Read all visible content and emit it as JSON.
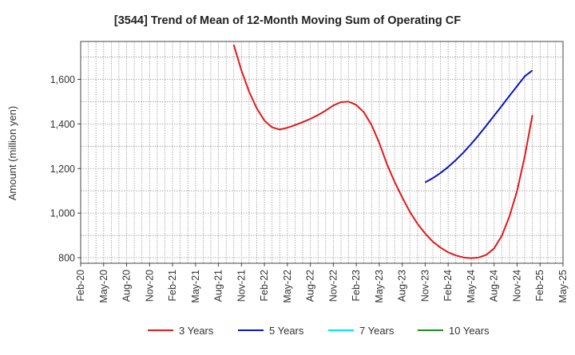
{
  "chart_data": {
    "type": "line",
    "title": "[3544]  Trend of Mean of 12-Month Moving Sum of Operating CF",
    "xlabel": "",
    "ylabel": "Amount (million yen)",
    "ylim": [
      775,
      1770
    ],
    "yticks": [
      800,
      1000,
      1200,
      1400,
      1600
    ],
    "ytick_labels": [
      "800",
      "1,000",
      "1,200",
      "1,400",
      "1,600"
    ],
    "x_start": "2020-02",
    "x_end": "2025-05",
    "xtick_labels": [
      "Feb-20",
      "May-20",
      "Aug-20",
      "Nov-20",
      "Feb-21",
      "May-21",
      "Aug-21",
      "Nov-21",
      "Feb-22",
      "May-22",
      "Aug-22",
      "Nov-22",
      "Feb-23",
      "May-23",
      "Aug-23",
      "Nov-23",
      "Feb-24",
      "May-24",
      "Aug-24",
      "Nov-24",
      "Feb-25",
      "May-25"
    ],
    "grid": true,
    "legend_position": "bottom",
    "series": [
      {
        "name": "3 Years",
        "color": "#e31a1c",
        "points": [
          [
            "2021-10",
            1755
          ],
          [
            "2021-11",
            1640
          ],
          [
            "2021-12",
            1545
          ],
          [
            "2022-01",
            1470
          ],
          [
            "2022-02",
            1415
          ],
          [
            "2022-03",
            1385
          ],
          [
            "2022-04",
            1375
          ],
          [
            "2022-05",
            1383
          ],
          [
            "2022-06",
            1395
          ],
          [
            "2022-07",
            1408
          ],
          [
            "2022-08",
            1423
          ],
          [
            "2022-09",
            1440
          ],
          [
            "2022-10",
            1460
          ],
          [
            "2022-11",
            1483
          ],
          [
            "2022-12",
            1498
          ],
          [
            "2023-01",
            1500
          ],
          [
            "2023-02",
            1485
          ],
          [
            "2023-03",
            1452
          ],
          [
            "2023-04",
            1395
          ],
          [
            "2023-05",
            1315
          ],
          [
            "2023-06",
            1220
          ],
          [
            "2023-07",
            1140
          ],
          [
            "2023-08",
            1070
          ],
          [
            "2023-09",
            1005
          ],
          [
            "2023-10",
            952
          ],
          [
            "2023-11",
            908
          ],
          [
            "2023-12",
            872
          ],
          [
            "2024-01",
            845
          ],
          [
            "2024-02",
            824
          ],
          [
            "2024-03",
            810
          ],
          [
            "2024-04",
            801
          ],
          [
            "2024-05",
            798
          ],
          [
            "2024-06",
            801
          ],
          [
            "2024-07",
            813
          ],
          [
            "2024-08",
            842
          ],
          [
            "2024-09",
            898
          ],
          [
            "2024-10",
            985
          ],
          [
            "2024-11",
            1100
          ],
          [
            "2024-12",
            1255
          ],
          [
            "2025-01",
            1440
          ]
        ]
      },
      {
        "name": "5 Years",
        "color": "#0a14c8",
        "points": [
          [
            "2023-11",
            1138
          ],
          [
            "2023-12",
            1157
          ],
          [
            "2024-01",
            1180
          ],
          [
            "2024-02",
            1207
          ],
          [
            "2024-03",
            1238
          ],
          [
            "2024-04",
            1272
          ],
          [
            "2024-05",
            1310
          ],
          [
            "2024-06",
            1350
          ],
          [
            "2024-07",
            1393
          ],
          [
            "2024-08",
            1437
          ],
          [
            "2024-09",
            1481
          ],
          [
            "2024-10",
            1526
          ],
          [
            "2024-11",
            1570
          ],
          [
            "2024-12",
            1614
          ],
          [
            "2025-01",
            1640
          ]
        ]
      },
      {
        "name": "7 Years",
        "color": "#00e5ee",
        "points": []
      },
      {
        "name": "10 Years",
        "color": "#1e8c1e",
        "points": []
      }
    ]
  }
}
